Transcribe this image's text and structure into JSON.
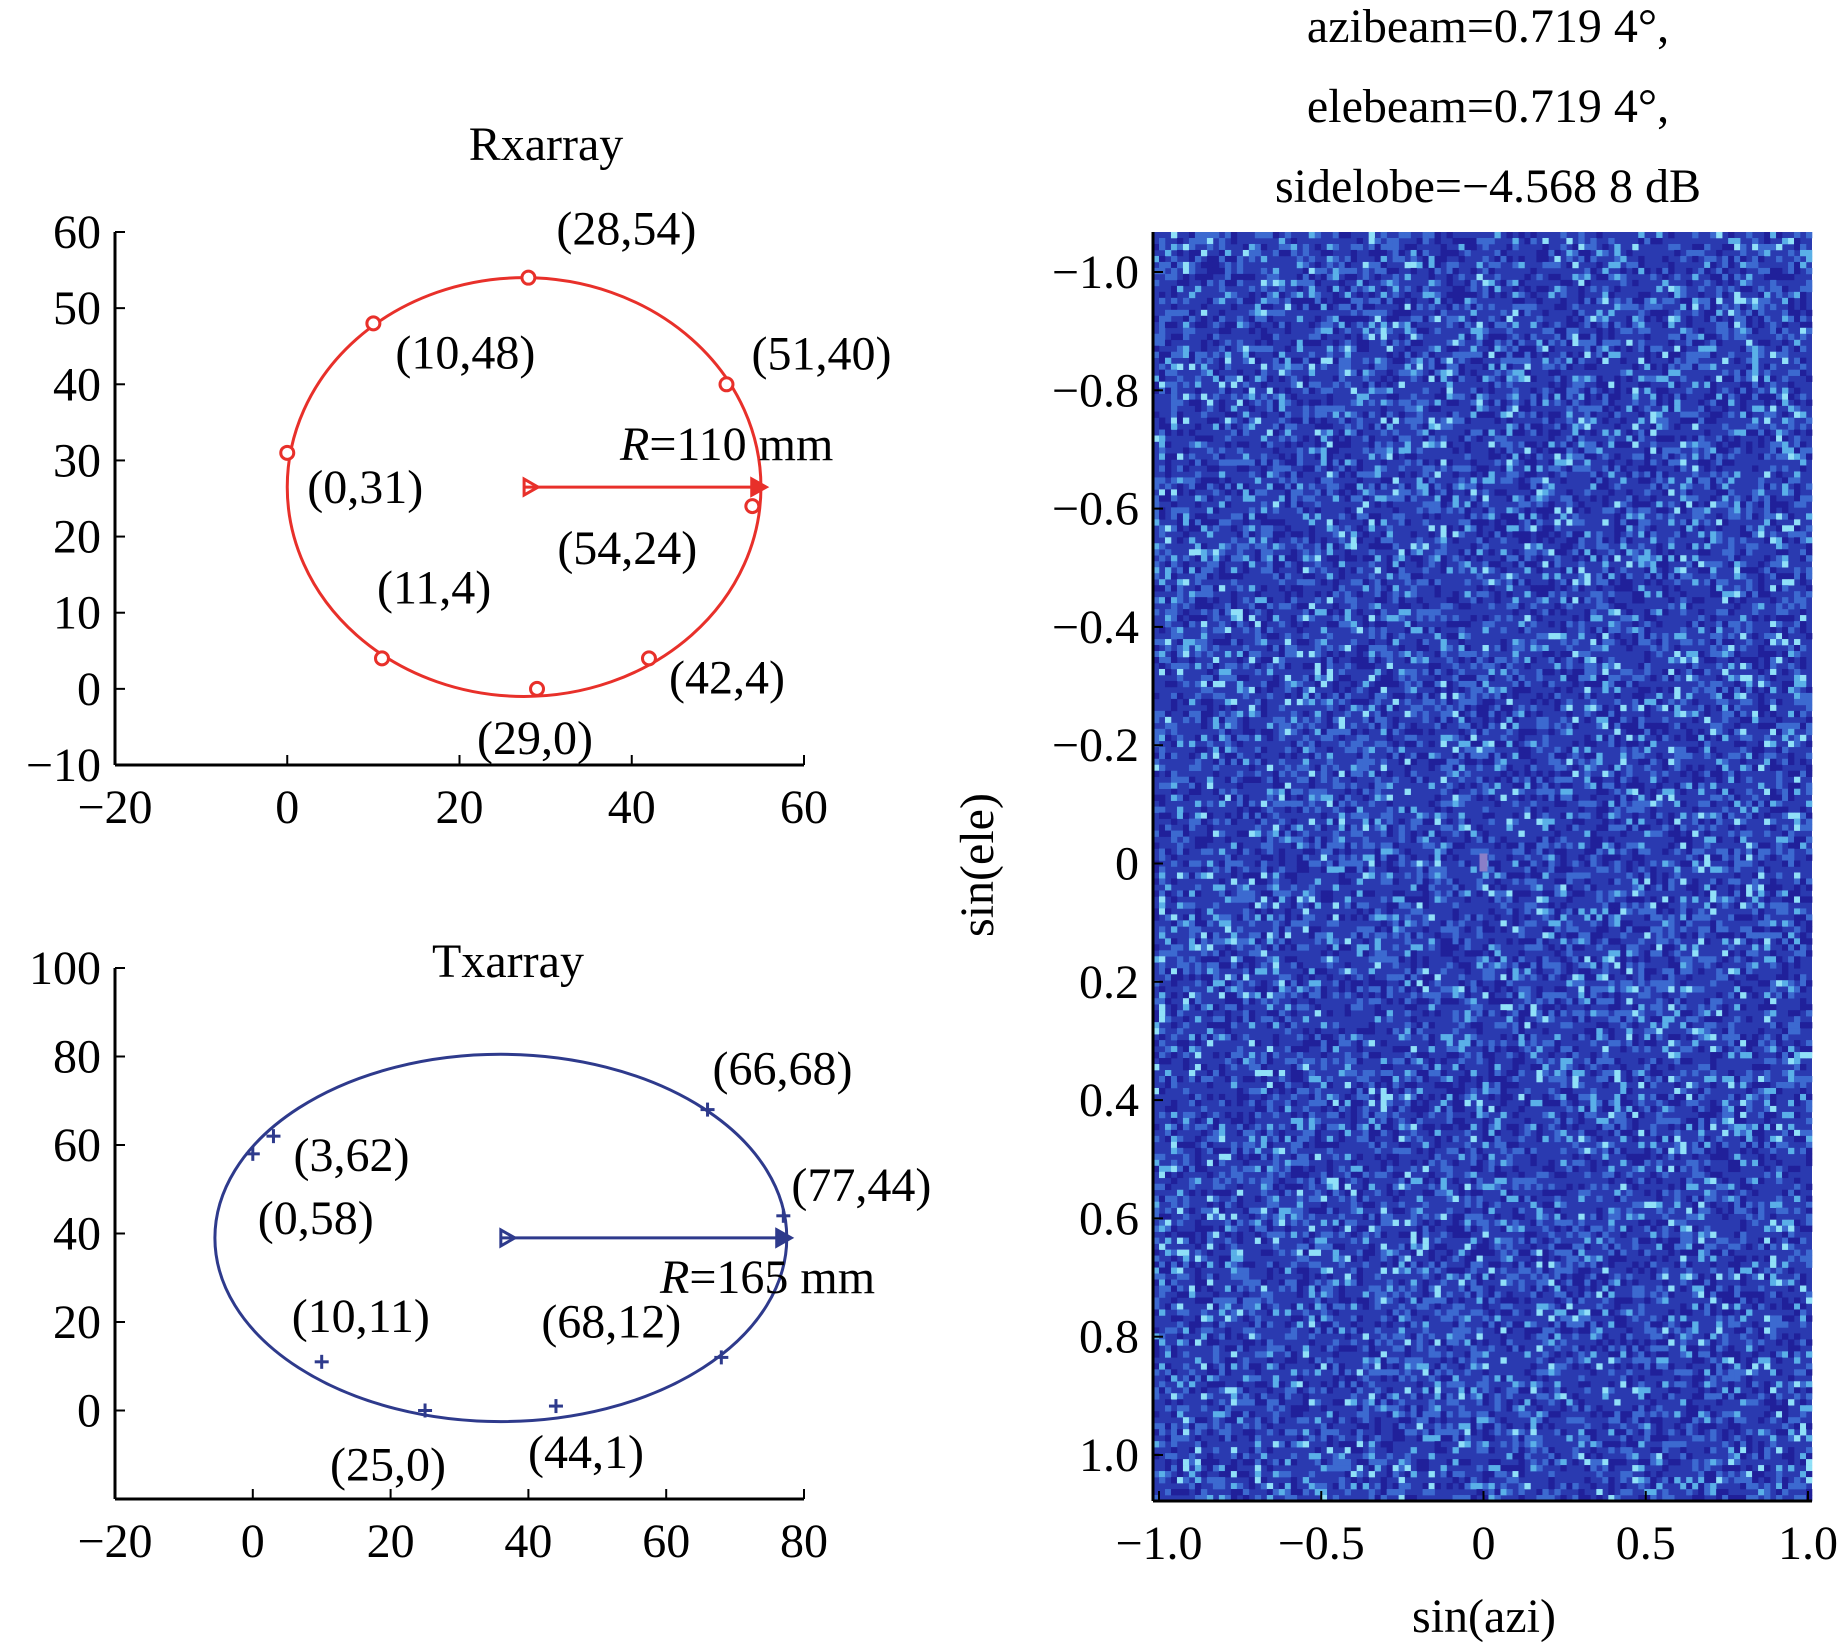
{
  "figure": {
    "background": "#ffffff"
  },
  "chart_data": [
    {
      "type": "scatter",
      "title": "Rxarray",
      "color": "#e8302a",
      "marker": "circle",
      "xlim": [
        -20,
        60
      ],
      "ylim": [
        -10,
        60
      ],
      "xticks": [
        "−20",
        "0",
        "20",
        "40",
        "60"
      ],
      "xtick_values": [
        -20,
        0,
        20,
        40,
        60
      ],
      "yticks": [
        "60",
        "50",
        "40",
        "30",
        "20",
        "10",
        "0",
        "−10"
      ],
      "ytick_values": [
        60,
        50,
        40,
        30,
        20,
        10,
        0,
        -10
      ],
      "grid": false,
      "points": [
        {
          "x": 28,
          "y": 54,
          "label": "(28,54)"
        },
        {
          "x": 10,
          "y": 48,
          "label": "(10,48)"
        },
        {
          "x": 51,
          "y": 40,
          "label": "(51,40)"
        },
        {
          "x": 0,
          "y": 31,
          "label": "(0,31)"
        },
        {
          "x": 54,
          "y": 24,
          "label": "(54,24)"
        },
        {
          "x": 11,
          "y": 4,
          "label": "(11,4)"
        },
        {
          "x": 42,
          "y": 4,
          "label": "(42,4)"
        },
        {
          "x": 29,
          "y": 0,
          "label": "(29,0)"
        }
      ],
      "circle": {
        "cx": 27.5,
        "cy": 26.5,
        "rx": 27.5,
        "ry": 27.5
      },
      "radius_arrow": {
        "x0": 27.5,
        "y0": 26.5,
        "x1": 55.5,
        "y1": 26.5
      },
      "radius_label_var": "R",
      "radius_label_text": "=110 mm"
    },
    {
      "type": "scatter",
      "title": "Txarray",
      "color": "#2e3a8c",
      "marker": "plus",
      "xlim": [
        -20,
        80
      ],
      "ylim": [
        -20,
        100
      ],
      "xticks": [
        "−20",
        "0",
        "20",
        "40",
        "60",
        "80"
      ],
      "xtick_values": [
        -20,
        0,
        20,
        40,
        60,
        80
      ],
      "yticks": [
        "100",
        "80",
        "60",
        "40",
        "20",
        "0"
      ],
      "ytick_values": [
        100,
        80,
        60,
        40,
        20,
        0
      ],
      "grid": false,
      "points": [
        {
          "x": 66,
          "y": 68,
          "label": "(66,68)"
        },
        {
          "x": 3,
          "y": 62,
          "label": "(3,62)"
        },
        {
          "x": 0,
          "y": 58,
          "label": "(0,58)"
        },
        {
          "x": 77,
          "y": 44,
          "label": "(77,44)"
        },
        {
          "x": 10,
          "y": 11,
          "label": "(10,11)"
        },
        {
          "x": 68,
          "y": 12,
          "label": "(68,12)"
        },
        {
          "x": 25,
          "y": 0,
          "label": "(25,0)"
        },
        {
          "x": 44,
          "y": 1,
          "label": "(44,1)"
        }
      ],
      "circle": {
        "cx": 36,
        "cy": 39,
        "rx": 41.5,
        "ry": 41.5
      },
      "radius_arrow": {
        "x0": 36,
        "y0": 39,
        "x1": 78,
        "y1": 39
      },
      "radius_label_var": "R",
      "radius_label_text": "=165 mm"
    },
    {
      "type": "heatmap",
      "title_lines": [
        "azibeam=0.719 4°,",
        "elebeam=0.719 4°,",
        "sidelobe=−4.568 8 dB"
      ],
      "xlabel": "sin(azi)",
      "ylabel": "sin(ele)",
      "xlim": [
        -1.0,
        1.0
      ],
      "ylim": [
        -1.0,
        1.0
      ],
      "xticks": [
        "−1.0",
        "−0.5",
        "0",
        "0.5",
        "1.0"
      ],
      "xtick_values": [
        -1.0,
        -0.5,
        0,
        0.5,
        1.0
      ],
      "yticks": [
        "−1.0",
        "−0.8",
        "−0.6",
        "−0.4",
        "−0.2",
        "0",
        "0.2",
        "0.4",
        "0.6",
        "0.8",
        "1.0"
      ],
      "ytick_values": [
        -1.0,
        -0.8,
        -0.6,
        -0.4,
        -0.2,
        0,
        0.2,
        0.4,
        0.6,
        0.8,
        1.0
      ],
      "y_reversed": true,
      "colormap": [
        "#20209a",
        "#2a3ab0",
        "#3c6ad0",
        "#5ab0e8",
        "#90e0f8"
      ],
      "peak": {
        "x": 0,
        "y": 0
      },
      "grid": false
    }
  ]
}
